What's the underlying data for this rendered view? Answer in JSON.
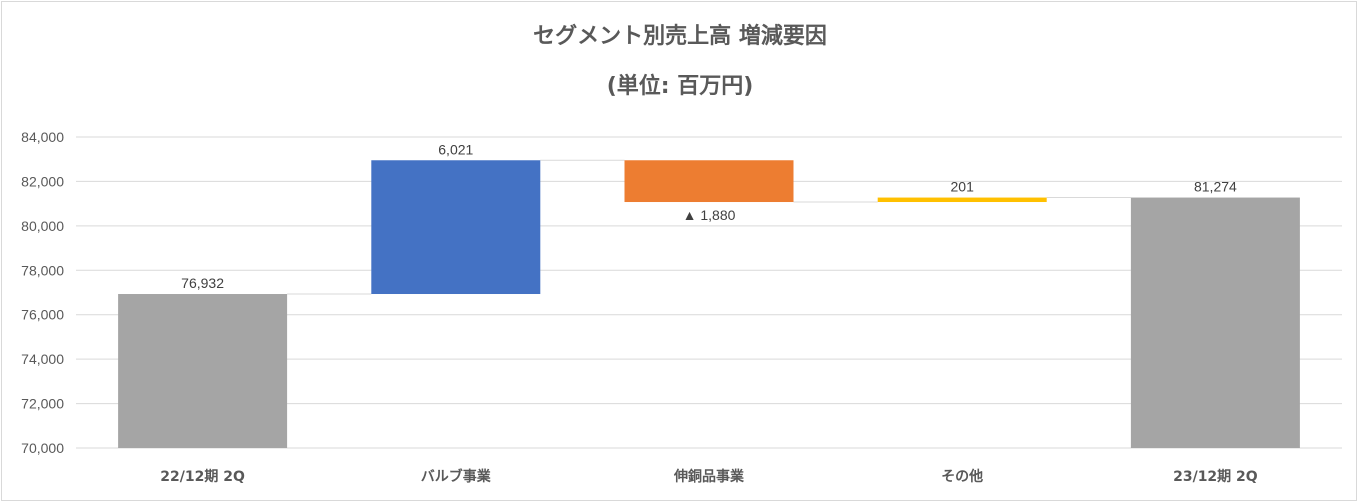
{
  "chart_data": {
    "type": "bar",
    "subtype": "waterfall",
    "title": "セグメント別売上高 増減要因",
    "subtitle": "(単位: 百万円)",
    "categories": [
      "22/12期 2Q",
      "バルブ事業",
      "伸銅品事業",
      "その他",
      "23/12期 2Q"
    ],
    "values": [
      76932,
      6021,
      -1880,
      201,
      81274
    ],
    "kinds": [
      "total",
      "delta",
      "delta",
      "delta",
      "total"
    ],
    "data_labels": [
      "76,932",
      "6,021",
      "▲ 1,880",
      "201",
      "81,274"
    ],
    "colors": [
      "#a5a5a5",
      "#4472c4",
      "#ed7d31",
      "#ffc000",
      "#a5a5a5"
    ],
    "ylim": [
      70000,
      84000
    ],
    "yticks": [
      70000,
      72000,
      74000,
      76000,
      78000,
      80000,
      82000,
      84000
    ],
    "ytick_labels": [
      "70,000",
      "72,000",
      "74,000",
      "76,000",
      "78,000",
      "80,000",
      "82,000",
      "84,000"
    ],
    "grid": true,
    "connector_lines": true,
    "xlabel": "",
    "ylabel": ""
  }
}
